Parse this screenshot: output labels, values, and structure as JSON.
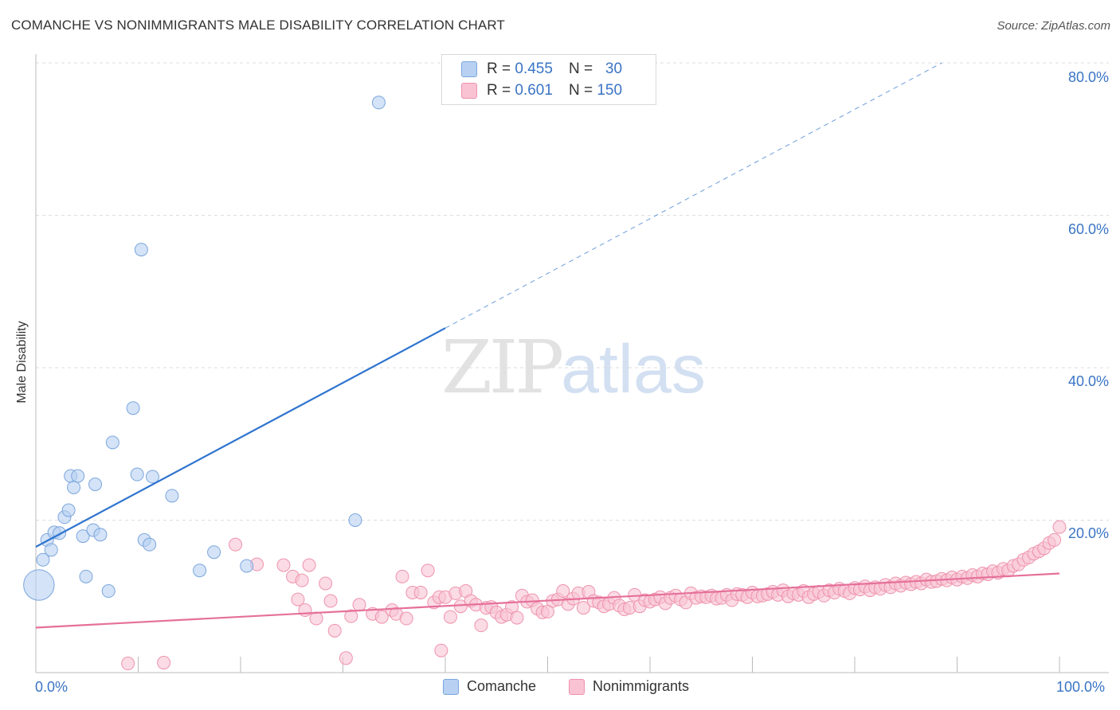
{
  "title": "COMANCHE VS NONIMMIGRANTS MALE DISABILITY CORRELATION CHART",
  "source": "Source: ZipAtlas.com",
  "watermark": {
    "zip": "ZIP",
    "atlas": "atlas"
  },
  "legend": {
    "series1": {
      "r_label": "R =",
      "r_value": "0.455",
      "n_label": "N =",
      "n_value": "30"
    },
    "series2": {
      "r_label": "R =",
      "r_value": "0.601",
      "n_label": "N =",
      "n_value": "150"
    }
  },
  "colors": {
    "comanche_fill": "#b8d1f2",
    "comanche_stroke": "#7ba6dc",
    "comanche_line": "#2f74cf",
    "nonimm_fill": "#f9c3d3",
    "nonimm_stroke": "#ee93ad",
    "nonimm_line": "#e5709a",
    "axis_text": "#3a74c4",
    "grid": "#dddddd"
  },
  "chart_data": {
    "type": "scatter",
    "title": "COMANCHE VS NONIMMIGRANTS MALE DISABILITY CORRELATION CHART",
    "xlabel": "",
    "ylabel": "Male Disability",
    "xlim": [
      0,
      100
    ],
    "ylim": [
      0,
      80
    ],
    "x_tick_labels": [
      "0.0%",
      "100.0%"
    ],
    "y_ticks": [
      20,
      40,
      60,
      80
    ],
    "y_tick_labels": [
      "20.0%",
      "40.0%",
      "60.0%",
      "80.0%"
    ],
    "grid": true,
    "legend_position": "bottom-center",
    "series": [
      {
        "name": "Comanche",
        "r": 0.455,
        "n": 30,
        "trend": {
          "x": [
            0,
            40
          ],
          "y": [
            16.5,
            45.2
          ],
          "extended_to": [
            88.5,
            80.0
          ]
        },
        "points": [
          [
            0.3,
            11.5,
            2.4
          ],
          [
            0.7,
            14.8,
            1
          ],
          [
            1.1,
            17.4,
            1
          ],
          [
            1.5,
            16.1,
            1
          ],
          [
            1.8,
            18.4,
            1
          ],
          [
            2.3,
            18.3,
            1
          ],
          [
            2.8,
            20.4,
            1
          ],
          [
            3.2,
            21.3,
            1
          ],
          [
            3.4,
            25.8,
            1
          ],
          [
            3.7,
            24.3,
            1
          ],
          [
            4.1,
            25.8,
            1
          ],
          [
            4.6,
            17.9,
            1
          ],
          [
            4.9,
            12.6,
            1
          ],
          [
            5.6,
            18.7,
            1
          ],
          [
            5.8,
            24.7,
            1
          ],
          [
            6.3,
            18.1,
            1
          ],
          [
            7.1,
            10.7,
            1
          ],
          [
            7.5,
            30.2,
            1
          ],
          [
            9.5,
            34.7,
            1
          ],
          [
            9.9,
            26.0,
            1
          ],
          [
            10.3,
            55.5,
            1
          ],
          [
            10.6,
            17.4,
            1
          ],
          [
            11.1,
            16.8,
            1
          ],
          [
            11.4,
            25.7,
            1
          ],
          [
            13.3,
            23.2,
            1
          ],
          [
            16.0,
            13.4,
            1
          ],
          [
            17.4,
            15.8,
            1
          ],
          [
            20.6,
            14.0,
            1
          ],
          [
            31.2,
            20.0,
            1
          ],
          [
            33.5,
            74.8,
            1
          ]
        ]
      },
      {
        "name": "Nonimmigrants",
        "r": 0.601,
        "n": 150,
        "trend": {
          "x": [
            0,
            100
          ],
          "y": [
            5.9,
            13.0
          ]
        },
        "points": [
          [
            9.0,
            1.2
          ],
          [
            12.5,
            1.3
          ],
          [
            19.5,
            16.8
          ],
          [
            21.6,
            14.2
          ],
          [
            24.2,
            14.1
          ],
          [
            25.1,
            12.6
          ],
          [
            25.6,
            9.6
          ],
          [
            26.0,
            12.1
          ],
          [
            26.3,
            8.2
          ],
          [
            26.7,
            14.1
          ],
          [
            27.4,
            7.1
          ],
          [
            28.3,
            11.7
          ],
          [
            28.8,
            9.4
          ],
          [
            29.2,
            5.5
          ],
          [
            30.3,
            1.9
          ],
          [
            30.8,
            7.4
          ],
          [
            31.6,
            8.9
          ],
          [
            32.9,
            7.7
          ],
          [
            33.8,
            7.3
          ],
          [
            34.8,
            8.2
          ],
          [
            35.2,
            7.7
          ],
          [
            35.8,
            12.6
          ],
          [
            36.2,
            7.1
          ],
          [
            36.8,
            10.5
          ],
          [
            37.6,
            10.5
          ],
          [
            38.3,
            13.4
          ],
          [
            38.9,
            9.2
          ],
          [
            39.4,
            9.9
          ],
          [
            39.6,
            2.9
          ],
          [
            40.0,
            9.9
          ],
          [
            40.5,
            7.3
          ],
          [
            41.0,
            10.4
          ],
          [
            41.5,
            8.7
          ],
          [
            42.0,
            10.7
          ],
          [
            42.5,
            9.4
          ],
          [
            43.0,
            8.9
          ],
          [
            43.5,
            6.2
          ],
          [
            44.0,
            8.5
          ],
          [
            44.5,
            8.6
          ],
          [
            45.0,
            7.9
          ],
          [
            45.5,
            7.3
          ],
          [
            46.0,
            7.6
          ],
          [
            46.5,
            8.6
          ],
          [
            47.0,
            7.2
          ],
          [
            47.5,
            10.1
          ],
          [
            48.0,
            9.3
          ],
          [
            48.5,
            9.5
          ],
          [
            49.0,
            8.4
          ],
          [
            49.5,
            7.9
          ],
          [
            50.0,
            8.0
          ],
          [
            50.5,
            9.4
          ],
          [
            51.0,
            9.6
          ],
          [
            51.5,
            10.7
          ],
          [
            52.0,
            9.0
          ],
          [
            52.5,
            9.7
          ],
          [
            53.0,
            10.4
          ],
          [
            53.5,
            8.5
          ],
          [
            54.0,
            10.6
          ],
          [
            54.5,
            9.4
          ],
          [
            55.0,
            9.2
          ],
          [
            55.5,
            8.7
          ],
          [
            56.0,
            9.0
          ],
          [
            56.5,
            9.8
          ],
          [
            57.0,
            8.8
          ],
          [
            57.5,
            8.3
          ],
          [
            58.0,
            8.5
          ],
          [
            58.5,
            10.2
          ],
          [
            59.0,
            8.7
          ],
          [
            59.5,
            9.5
          ],
          [
            60.0,
            9.3
          ],
          [
            60.5,
            9.6
          ],
          [
            61.0,
            9.9
          ],
          [
            61.5,
            9.1
          ],
          [
            62.0,
            9.8
          ],
          [
            62.5,
            10.1
          ],
          [
            63.0,
            9.6
          ],
          [
            63.5,
            9.2
          ],
          [
            64.0,
            10.4
          ],
          [
            64.5,
            9.8
          ],
          [
            65.0,
            10.0
          ],
          [
            65.5,
            9.9
          ],
          [
            66.0,
            10.1
          ],
          [
            66.5,
            9.7
          ],
          [
            67.0,
            9.8
          ],
          [
            67.5,
            10.2
          ],
          [
            68.0,
            9.5
          ],
          [
            68.5,
            10.3
          ],
          [
            69.0,
            10.2
          ],
          [
            69.5,
            9.9
          ],
          [
            70.0,
            10.5
          ],
          [
            70.5,
            10.0
          ],
          [
            71.0,
            10.1
          ],
          [
            71.5,
            10.3
          ],
          [
            72.0,
            10.6
          ],
          [
            72.5,
            10.2
          ],
          [
            73.0,
            10.8
          ],
          [
            73.5,
            10.0
          ],
          [
            74.0,
            10.4
          ],
          [
            74.5,
            10.2
          ],
          [
            75.0,
            10.7
          ],
          [
            75.5,
            9.9
          ],
          [
            76.0,
            10.3
          ],
          [
            76.5,
            10.6
          ],
          [
            77.0,
            10.1
          ],
          [
            77.5,
            10.8
          ],
          [
            78.0,
            10.5
          ],
          [
            78.5,
            11.0
          ],
          [
            79.0,
            10.7
          ],
          [
            79.5,
            10.4
          ],
          [
            80.0,
            11.1
          ],
          [
            80.5,
            10.9
          ],
          [
            81.0,
            11.3
          ],
          [
            81.5,
            10.8
          ],
          [
            82.0,
            11.2
          ],
          [
            82.5,
            11.0
          ],
          [
            83.0,
            11.5
          ],
          [
            83.5,
            11.2
          ],
          [
            84.0,
            11.7
          ],
          [
            84.5,
            11.4
          ],
          [
            85.0,
            11.8
          ],
          [
            85.5,
            11.6
          ],
          [
            86.0,
            11.9
          ],
          [
            86.5,
            11.7
          ],
          [
            87.0,
            12.2
          ],
          [
            87.5,
            11.9
          ],
          [
            88.0,
            12.0
          ],
          [
            88.5,
            12.3
          ],
          [
            89.0,
            12.1
          ],
          [
            89.5,
            12.5
          ],
          [
            90.0,
            12.2
          ],
          [
            90.5,
            12.6
          ],
          [
            91.0,
            12.4
          ],
          [
            91.5,
            12.8
          ],
          [
            92.0,
            12.6
          ],
          [
            92.5,
            13.0
          ],
          [
            93.0,
            12.9
          ],
          [
            93.5,
            13.3
          ],
          [
            94.0,
            13.1
          ],
          [
            94.5,
            13.6
          ],
          [
            95.0,
            13.4
          ],
          [
            95.5,
            14.0
          ],
          [
            96.0,
            14.2
          ],
          [
            96.5,
            14.8
          ],
          [
            97.0,
            15.1
          ],
          [
            97.5,
            15.6
          ],
          [
            98.0,
            15.9
          ],
          [
            98.5,
            16.3
          ],
          [
            99.0,
            17.0
          ],
          [
            99.5,
            17.4
          ],
          [
            100.0,
            19.1
          ]
        ]
      }
    ]
  },
  "bottom_legend": [
    "Comanche",
    "Nonimmigrants"
  ]
}
